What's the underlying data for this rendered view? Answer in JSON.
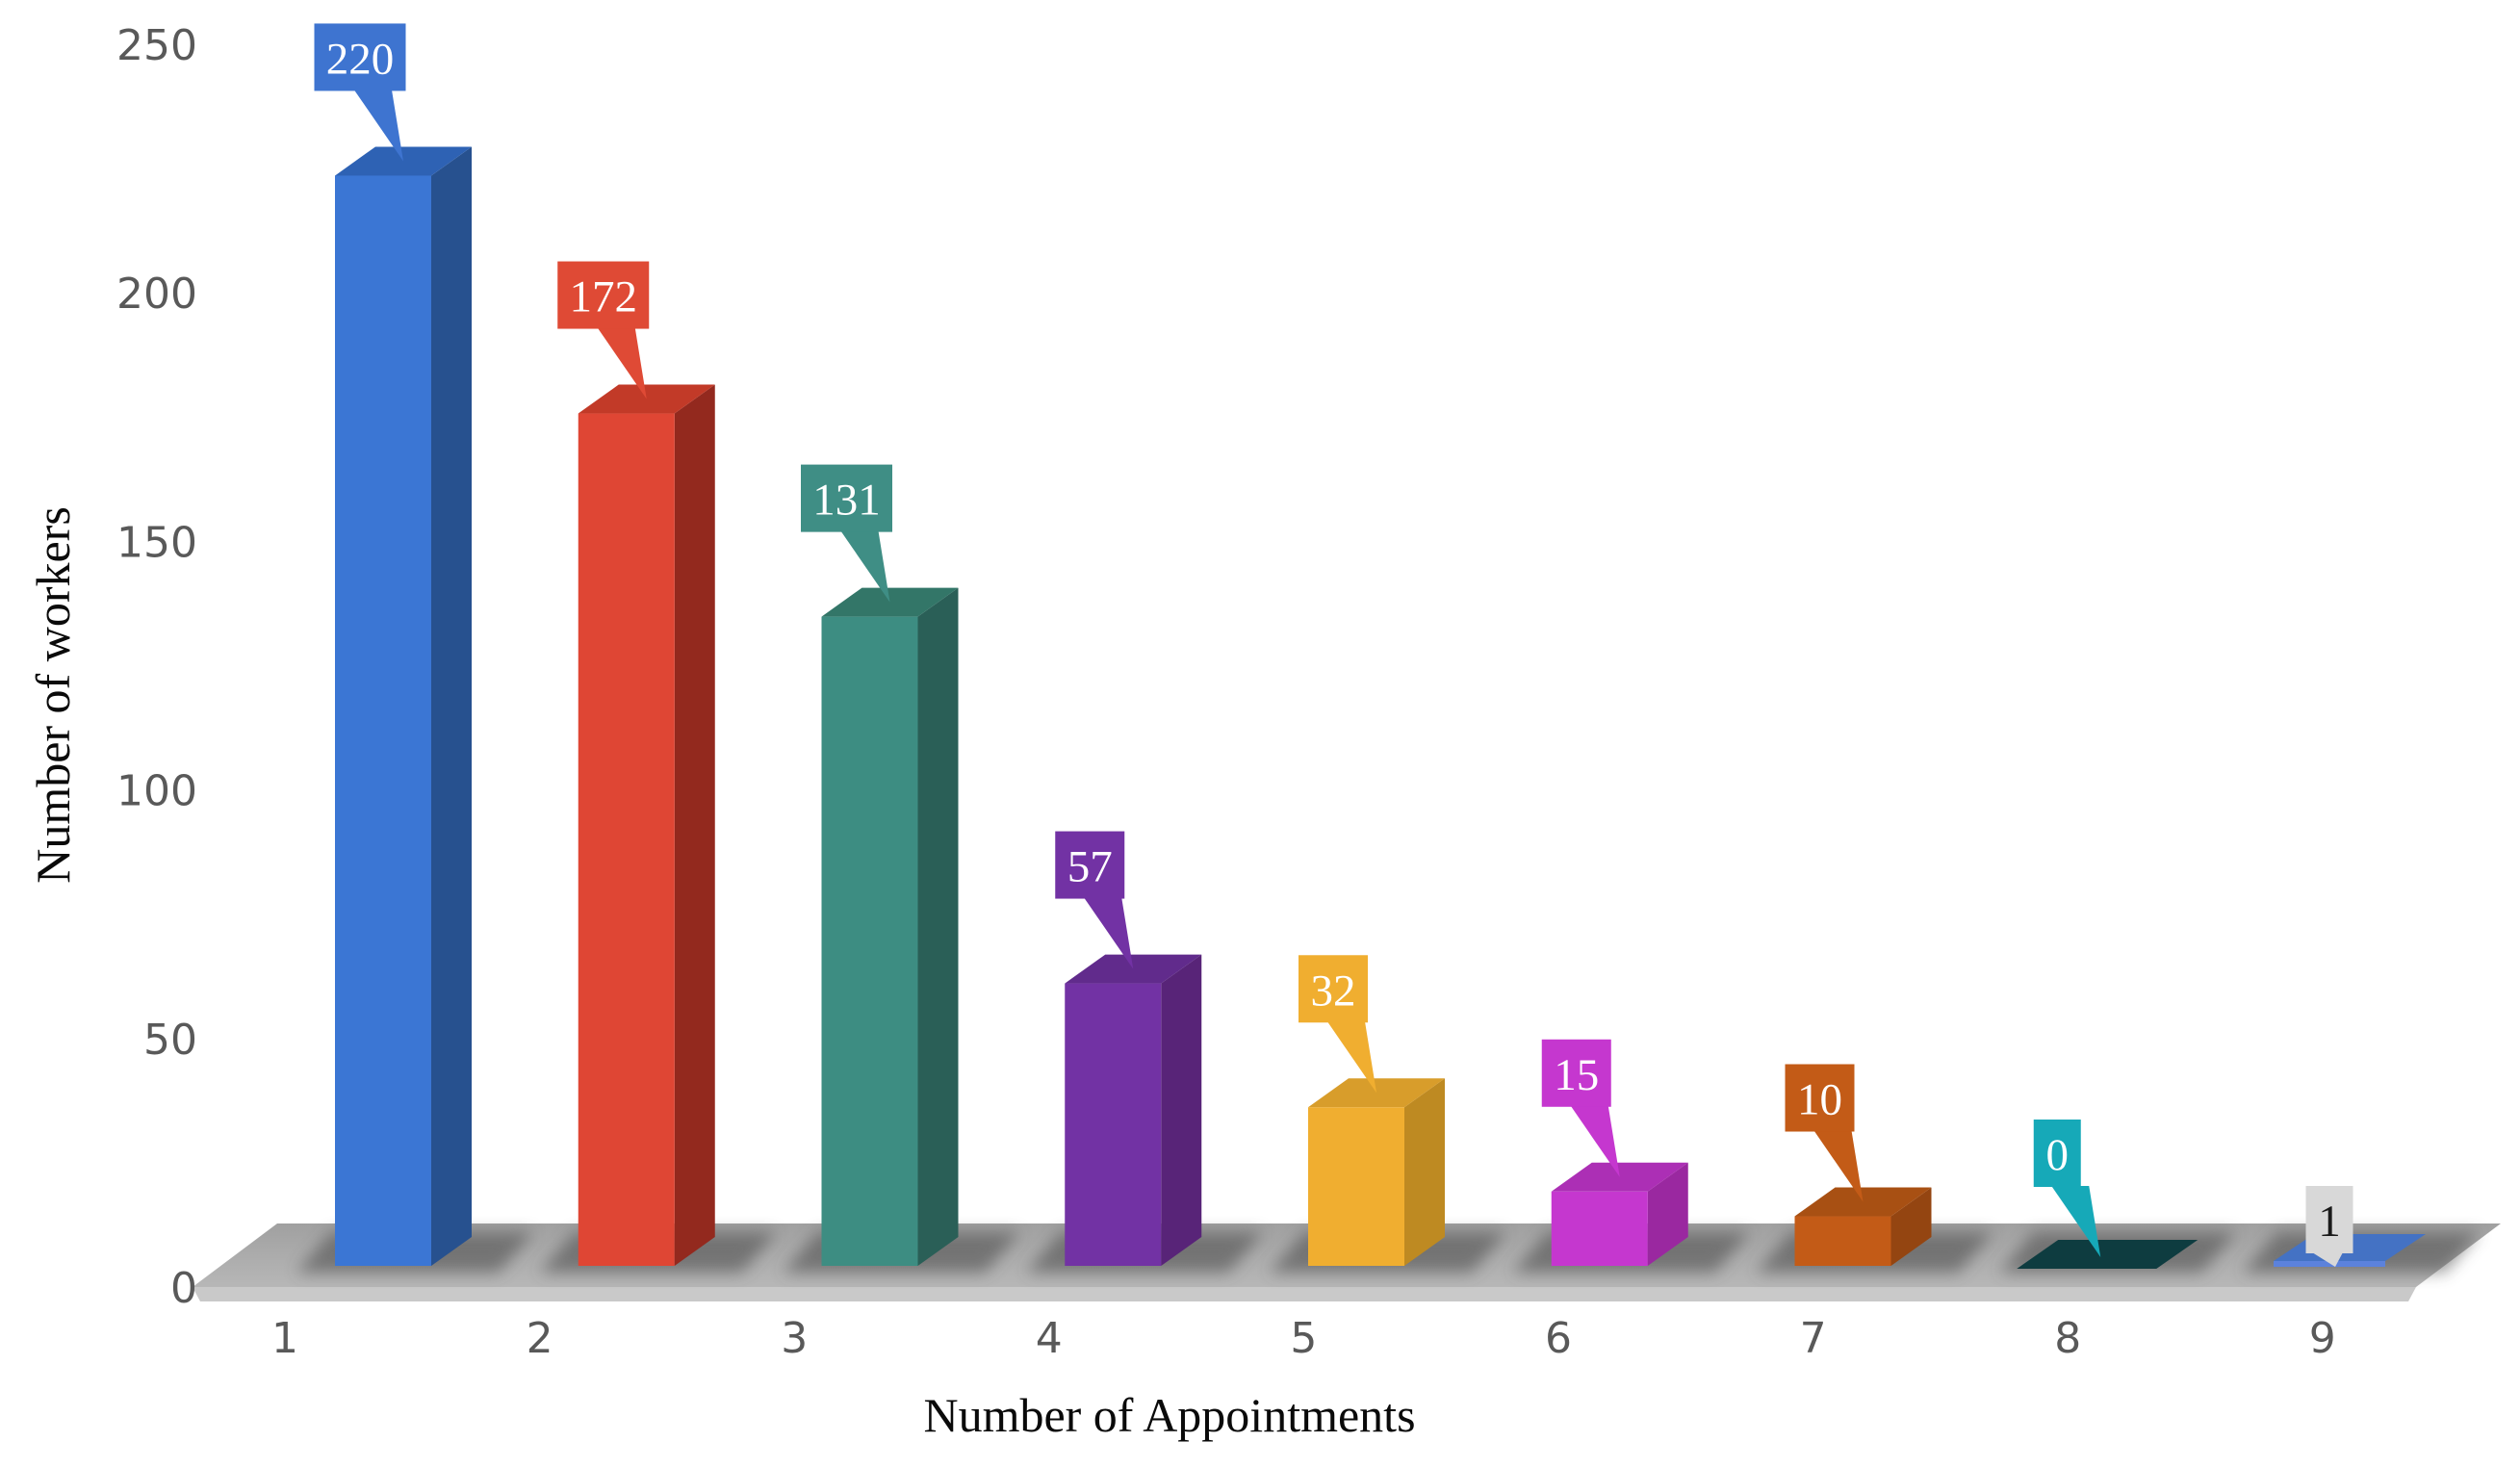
{
  "chart_data": {
    "type": "bar",
    "variant": "3d-column-with-callout-labels",
    "title": "",
    "xlabel": "Number of Appointments",
    "ylabel": "Number of workers",
    "categories": [
      "1",
      "2",
      "3",
      "4",
      "5",
      "6",
      "7",
      "8",
      "9"
    ],
    "values": [
      220,
      172,
      131,
      57,
      32,
      15,
      10,
      0,
      1
    ],
    "data_labels": [
      "220",
      "172",
      "131",
      "57",
      "32",
      "15",
      "10",
      "0",
      "1"
    ],
    "ylim": [
      0,
      250
    ],
    "yticks": [
      "250",
      "200",
      "150",
      "100",
      "50",
      "0"
    ],
    "grid": "off",
    "legend": "none",
    "tick_color": "#595959",
    "floor_top_color": "#ababab",
    "floor_front_color": "#c9c9c9",
    "shadow_color": "#474747",
    "point_styles": [
      {
        "name": "blue",
        "front": "#3b76d4",
        "side": "#27518f",
        "top": "#2e62b4",
        "callout_bg": "#3e74d0",
        "callout_text": "#ffffff"
      },
      {
        "name": "red",
        "front": "#df4634",
        "side": "#93291e",
        "top": "#c23a28",
        "callout_bg": "#df4a35",
        "callout_text": "#ffffff"
      },
      {
        "name": "teal",
        "front": "#3d8d82",
        "side": "#2a5f57",
        "top": "#337668",
        "callout_bg": "#3f8e85",
        "callout_text": "#ffffff"
      },
      {
        "name": "purple",
        "front": "#7232a4",
        "side": "#582478",
        "top": "#612b8c",
        "callout_bg": "#7232a4",
        "callout_text": "#ffffff"
      },
      {
        "name": "amber",
        "front": "#f0ae30",
        "side": "#be8a22",
        "top": "#d89d2b",
        "callout_bg": "#f0ae30",
        "callout_text": "#ffffff"
      },
      {
        "name": "magenta",
        "front": "#c537cf",
        "side": "#9a28a0",
        "top": "#ac2fb5",
        "callout_bg": "#c537cf",
        "callout_text": "#ffffff"
      },
      {
        "name": "orange",
        "front": "#c35b17",
        "side": "#944511",
        "top": "#a85013",
        "callout_bg": "#c35b17",
        "callout_text": "#ffffff"
      },
      {
        "name": "dark-teal",
        "front": "#0e3c40",
        "side": "#0a2e31",
        "top": "#0e3c40",
        "callout_bg": "#16a9b8",
        "callout_text": "#ffffff"
      },
      {
        "name": "flat-blue",
        "front": "#5c82dc",
        "side": "#3d62ac",
        "top": "#4472c4",
        "callout_bg": "#d8d8d8",
        "callout_text": "#1a1a1a"
      }
    ]
  }
}
